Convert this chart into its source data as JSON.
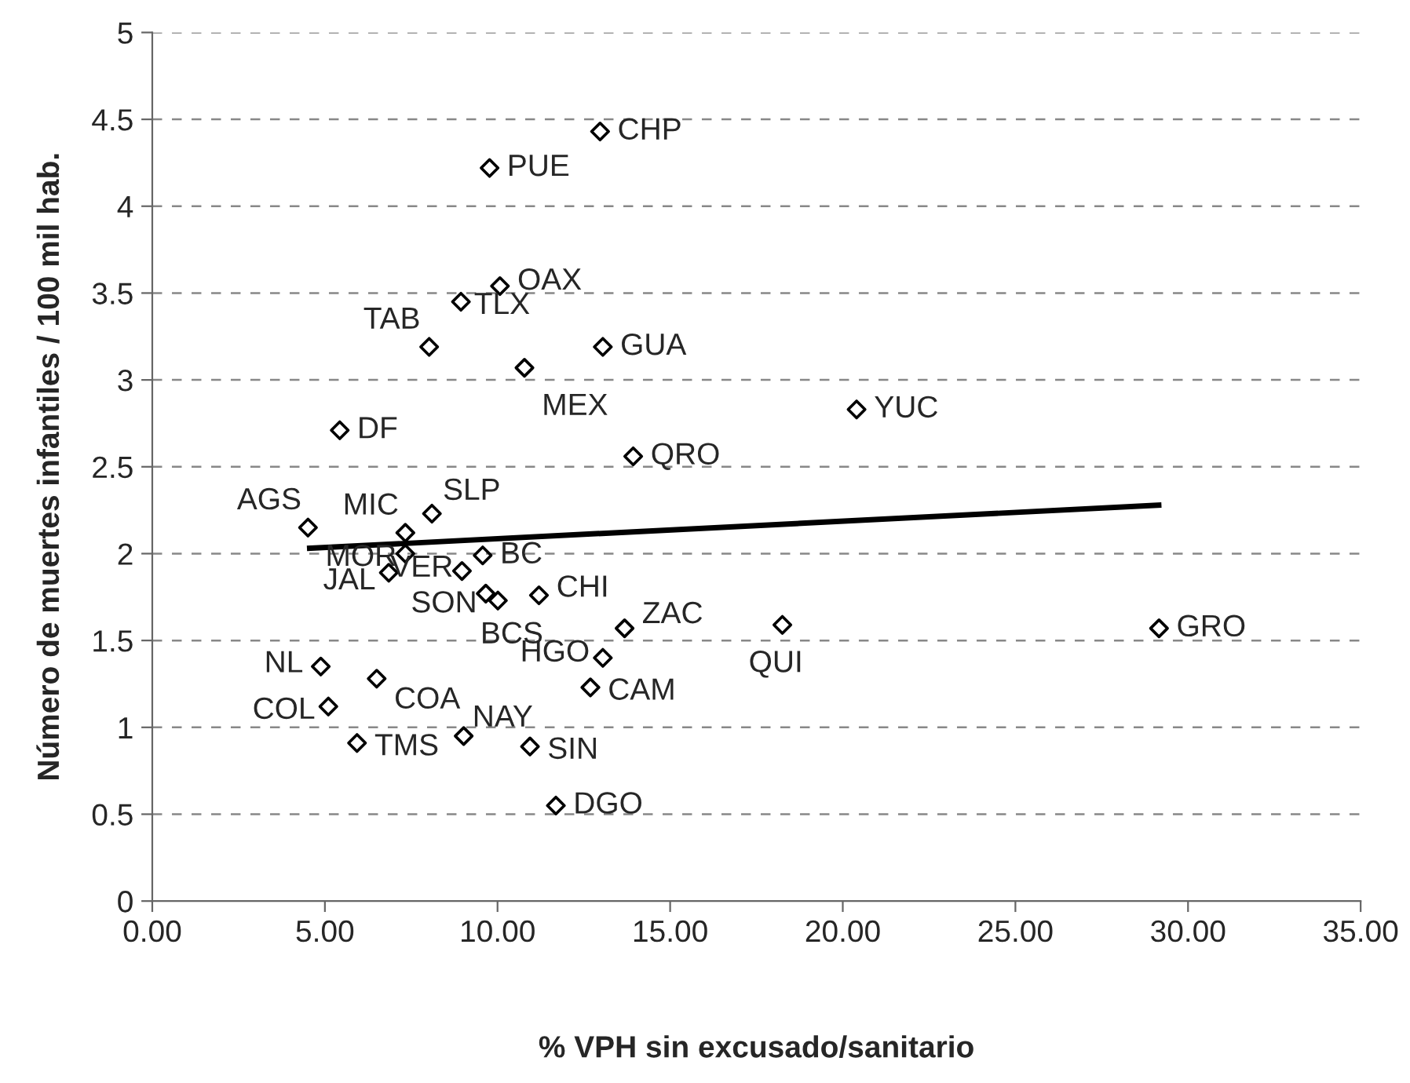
{
  "chart_data": {
    "type": "scatter",
    "xlabel": "% VPH sin excusado/sanitario",
    "ylabel": "Número de muertes infantiles / 100 mil hab.",
    "series": [
      {
        "color": "#000000",
        "marker": "diamond",
        "x": [
          12.97,
          9.77,
          10.07,
          8.94,
          8.02,
          13.05,
          10.78,
          5.43,
          13.93,
          20.4,
          29.16,
          18.25,
          4.51,
          7.33,
          8.1,
          7.33,
          6.85,
          8.97,
          9.57,
          9.66,
          10.01,
          11.2,
          13.68,
          13.05,
          12.69,
          4.88,
          5.1,
          6.5,
          5.93,
          9.02,
          10.94,
          11.69
        ],
        "values": [
          4.43,
          4.22,
          3.54,
          3.45,
          3.19,
          3.19,
          3.07,
          2.71,
          2.56,
          2.83,
          1.57,
          1.59,
          2.15,
          2.12,
          2.23,
          2.0,
          1.89,
          1.9,
          1.99,
          1.77,
          1.73,
          1.76,
          1.57,
          1.4,
          1.23,
          1.35,
          1.12,
          1.28,
          0.91,
          0.95,
          0.89,
          0.55
        ]
      },
      {
        "type": "line",
        "color": "#000000",
        "marker": "none",
        "line_style": "solid",
        "x": [
          4.48,
          29.23
        ],
        "values": [
          2.03,
          2.28
        ]
      }
    ],
    "annotations": [
      {
        "text": "CHP",
        "x": 12.97,
        "y": 4.43
      },
      {
        "text": "PUE",
        "x": 9.77,
        "y": 4.22
      },
      {
        "text": "OAX",
        "x": 10.07,
        "y": 3.54
      },
      {
        "text": "TLX",
        "x": 8.94,
        "y": 3.45
      },
      {
        "text": "TAB",
        "x": 8.02,
        "y": 3.19
      },
      {
        "text": "GUA",
        "x": 13.05,
        "y": 3.19
      },
      {
        "text": "MEX",
        "x": 10.78,
        "y": 3.07
      },
      {
        "text": "DF",
        "x": 5.43,
        "y": 2.71
      },
      {
        "text": "QRO",
        "x": 13.93,
        "y": 2.56
      },
      {
        "text": "YUC",
        "x": 20.4,
        "y": 2.83
      },
      {
        "text": "GRO",
        "x": 29.16,
        "y": 1.57
      },
      {
        "text": "QUI",
        "x": 18.25,
        "y": 1.59
      },
      {
        "text": "AGS",
        "x": 4.51,
        "y": 2.15
      },
      {
        "text": "MIC",
        "x": 7.33,
        "y": 2.12
      },
      {
        "text": "SLP",
        "x": 8.1,
        "y": 2.23
      },
      {
        "text": "MOR",
        "x": 7.33,
        "y": 2.0
      },
      {
        "text": "JAL",
        "x": 6.85,
        "y": 1.89
      },
      {
        "text": "VER",
        "x": 8.97,
        "y": 1.9
      },
      {
        "text": "BC",
        "x": 9.57,
        "y": 1.99
      },
      {
        "text": "SON",
        "x": 9.66,
        "y": 1.77
      },
      {
        "text": "BCS",
        "x": 10.01,
        "y": 1.73
      },
      {
        "text": "CHI",
        "x": 11.2,
        "y": 1.76
      },
      {
        "text": "ZAC",
        "x": 13.68,
        "y": 1.57
      },
      {
        "text": "HGO",
        "x": 13.05,
        "y": 1.4
      },
      {
        "text": "CAM",
        "x": 12.69,
        "y": 1.23
      },
      {
        "text": "NL",
        "x": 4.88,
        "y": 1.35
      },
      {
        "text": "COL",
        "x": 5.1,
        "y": 1.12
      },
      {
        "text": "COA",
        "x": 6.5,
        "y": 1.28
      },
      {
        "text": "TMS",
        "x": 5.93,
        "y": 0.91
      },
      {
        "text": "NAY",
        "x": 9.02,
        "y": 0.95
      },
      {
        "text": "SIN",
        "x": 10.94,
        "y": 0.89
      },
      {
        "text": "DGO",
        "x": 11.69,
        "y": 0.55
      }
    ],
    "xlim": [
      0,
      35
    ],
    "xticks": [
      {
        "value": 0,
        "label": "0.00"
      },
      {
        "value": 5,
        "label": "5.00"
      },
      {
        "value": 10,
        "label": "10.00"
      },
      {
        "value": 15,
        "label": "15.00"
      },
      {
        "value": 20,
        "label": "20.00"
      },
      {
        "value": 25,
        "label": "25.00"
      },
      {
        "value": 30,
        "label": "30.00"
      },
      {
        "value": 35,
        "label": "35.00"
      }
    ],
    "ylim": [
      0,
      5
    ],
    "yticks": [
      0,
      0.5,
      1,
      1.5,
      2,
      2.5,
      3,
      3.5,
      4,
      4.5,
      5
    ],
    "grid": "y"
  }
}
